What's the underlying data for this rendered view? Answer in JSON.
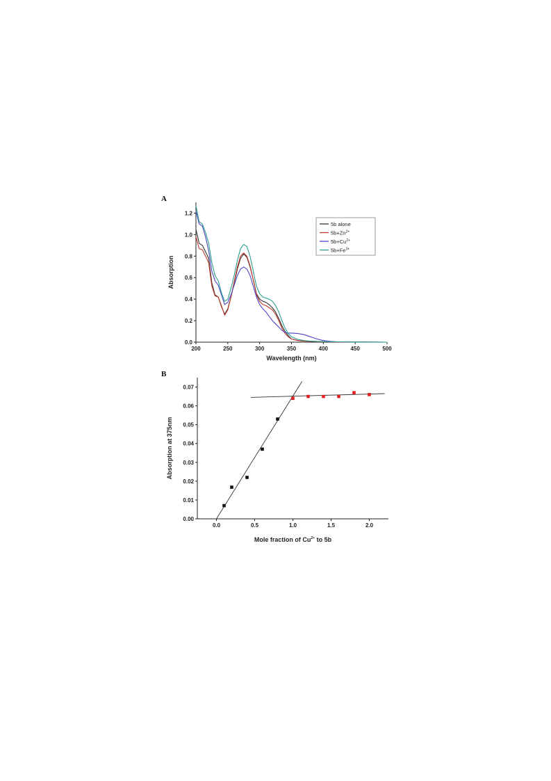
{
  "panels": {
    "a_label": "A",
    "b_label": "B"
  },
  "chart_data": [
    {
      "type": "line",
      "panel": "A",
      "xlabel": "Wavelength (nm)",
      "ylabel": "Absorption",
      "xlim": [
        200,
        500
      ],
      "ylim": [
        0,
        1.3
      ],
      "xticks": [
        200,
        250,
        300,
        350,
        400,
        450,
        500
      ],
      "yticks": [
        0.0,
        0.2,
        0.4,
        0.6,
        0.8,
        1.0,
        1.2
      ],
      "xtick_labels": [
        "200",
        "250",
        "300",
        "350",
        "400",
        "450",
        "500"
      ],
      "ytick_labels": [
        "0.0",
        "0.2",
        "0.4",
        "0.6",
        "0.8",
        "1.0",
        "1.2"
      ],
      "legend_position": "top-right",
      "series": [
        {
          "name": "5b alone",
          "legend_base": "5b alone",
          "legend_sup": "",
          "color": "#333333",
          "x": [
            200,
            205,
            210,
            215,
            220,
            225,
            230,
            235,
            240,
            245,
            250,
            255,
            260,
            265,
            270,
            275,
            280,
            285,
            290,
            295,
            300,
            305,
            310,
            315,
            320,
            325,
            330,
            335,
            340,
            345,
            350,
            360,
            370,
            380,
            390,
            400,
            410,
            420,
            450,
            500
          ],
          "y": [
            1.05,
            0.92,
            0.9,
            0.84,
            0.78,
            0.55,
            0.44,
            0.42,
            0.33,
            0.26,
            0.31,
            0.42,
            0.55,
            0.68,
            0.78,
            0.82,
            0.79,
            0.7,
            0.58,
            0.45,
            0.4,
            0.38,
            0.37,
            0.35,
            0.32,
            0.28,
            0.22,
            0.15,
            0.1,
            0.06,
            0.03,
            0.015,
            0.01,
            0.008,
            0.006,
            0.004,
            0.003,
            0.002,
            0.001,
            0.0
          ]
        },
        {
          "name": "5b+Zn2+",
          "legend_base": "5b+Zn",
          "legend_sup": "2+",
          "color": "#c0392b",
          "x": [
            200,
            205,
            210,
            215,
            220,
            225,
            230,
            235,
            240,
            245,
            250,
            255,
            260,
            265,
            270,
            275,
            280,
            285,
            290,
            295,
            300,
            305,
            310,
            315,
            320,
            325,
            330,
            335,
            340,
            345,
            350,
            360,
            370,
            380,
            390,
            400,
            410,
            420,
            450,
            500
          ],
          "y": [
            0.98,
            0.87,
            0.86,
            0.8,
            0.74,
            0.52,
            0.43,
            0.42,
            0.34,
            0.25,
            0.3,
            0.42,
            0.56,
            0.7,
            0.8,
            0.83,
            0.8,
            0.71,
            0.58,
            0.44,
            0.38,
            0.35,
            0.34,
            0.32,
            0.3,
            0.26,
            0.2,
            0.13,
            0.08,
            0.05,
            0.03,
            0.015,
            0.01,
            0.007,
            0.005,
            0.004,
            0.003,
            0.002,
            0.001,
            0.0
          ]
        },
        {
          "name": "5b+Cu2+",
          "legend_base": "5b+Cu",
          "legend_sup": "2+",
          "color": "#4a44c4",
          "x": [
            200,
            205,
            210,
            215,
            220,
            225,
            230,
            235,
            240,
            245,
            250,
            255,
            260,
            265,
            270,
            275,
            280,
            285,
            290,
            295,
            300,
            305,
            310,
            315,
            320,
            325,
            330,
            335,
            340,
            345,
            350,
            360,
            370,
            380,
            390,
            400,
            410,
            420,
            450,
            500
          ],
          "y": [
            1.22,
            1.1,
            1.08,
            0.98,
            0.85,
            0.66,
            0.57,
            0.53,
            0.44,
            0.35,
            0.37,
            0.44,
            0.53,
            0.62,
            0.68,
            0.7,
            0.68,
            0.62,
            0.52,
            0.42,
            0.35,
            0.31,
            0.28,
            0.24,
            0.2,
            0.17,
            0.14,
            0.11,
            0.09,
            0.085,
            0.085,
            0.08,
            0.07,
            0.05,
            0.03,
            0.015,
            0.008,
            0.004,
            0.001,
            0.0
          ]
        },
        {
          "name": "5b+Fe3+",
          "legend_base": "5b+Fe",
          "legend_sup": "3+",
          "color": "#2a9d8f",
          "x": [
            200,
            205,
            210,
            215,
            220,
            225,
            230,
            235,
            240,
            245,
            250,
            255,
            260,
            265,
            270,
            275,
            280,
            285,
            290,
            295,
            300,
            305,
            310,
            315,
            320,
            325,
            330,
            335,
            340,
            345,
            350,
            360,
            370,
            380,
            390,
            400,
            410,
            420,
            450,
            500
          ],
          "y": [
            1.27,
            1.12,
            1.1,
            1.02,
            0.92,
            0.74,
            0.62,
            0.57,
            0.46,
            0.38,
            0.4,
            0.5,
            0.62,
            0.76,
            0.87,
            0.91,
            0.89,
            0.8,
            0.66,
            0.52,
            0.45,
            0.42,
            0.41,
            0.4,
            0.38,
            0.34,
            0.28,
            0.2,
            0.13,
            0.08,
            0.05,
            0.025,
            0.015,
            0.01,
            0.007,
            0.005,
            0.004,
            0.003,
            0.001,
            0.0
          ]
        }
      ]
    },
    {
      "type": "scatter",
      "panel": "B",
      "xlabel_base": "Mole fraction of Cu",
      "xlabel_sup": "2+",
      "xlabel_tail": " to 5b",
      "ylabel": "Absorption at 375nm",
      "xlim": [
        -0.25,
        2.25
      ],
      "ylim": [
        0,
        0.075
      ],
      "xticks": [
        0.0,
        0.5,
        1.0,
        1.5,
        2.0
      ],
      "yticks": [
        0.0,
        0.01,
        0.02,
        0.03,
        0.04,
        0.05,
        0.06,
        0.07
      ],
      "xtick_labels": [
        "0.0",
        "0.5",
        "1.0",
        "1.5",
        "2.0"
      ],
      "ytick_labels": [
        "0.00",
        "0.01",
        "0.02",
        "0.03",
        "0.04",
        "0.05",
        "0.06",
        "0.07"
      ],
      "series": [
        {
          "color": "#111111",
          "x": [
            0.1,
            0.2,
            0.4,
            0.6,
            0.8
          ],
          "y": [
            0.007,
            0.0168,
            0.022,
            0.037,
            0.053
          ]
        },
        {
          "color": "#e02020",
          "x": [
            1.0,
            1.2,
            1.4,
            1.6,
            1.8,
            2.0
          ],
          "y": [
            0.064,
            0.065,
            0.065,
            0.065,
            0.067,
            0.066
          ]
        }
      ],
      "fit_lines": [
        {
          "x": [
            0.0,
            1.12
          ],
          "y": [
            0.0,
            0.073
          ]
        },
        {
          "x": [
            0.45,
            2.2
          ],
          "y": [
            0.0645,
            0.0665
          ]
        }
      ]
    }
  ]
}
